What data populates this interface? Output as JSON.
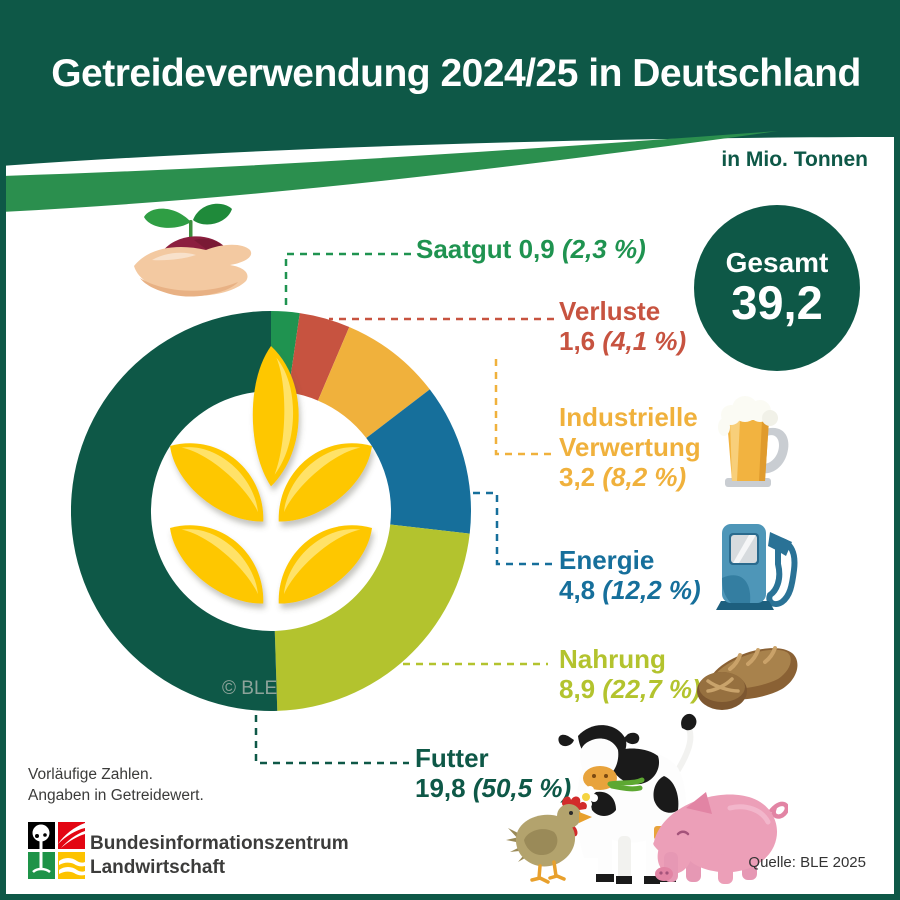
{
  "title": "Getreideverwendung 2024/25 in Deutschland",
  "unit_label": "in Mio. Tonnen",
  "total": {
    "label": "Gesamt",
    "value": "39,2"
  },
  "chart_data": {
    "type": "pie",
    "subtype": "donut",
    "title": "Getreideverwendung 2024/25 in Deutschland",
    "unit": "Mio. Tonnen",
    "total": 39.2,
    "start_angle_deg": 0,
    "direction": "clockwise",
    "inner_radius_ratio": 0.6,
    "categories": [
      {
        "name": "Saatgut",
        "value": 0.9,
        "value_label": "0,9",
        "pct": 2.3,
        "pct_label": "(2,3 %)",
        "color": "#1f9350"
      },
      {
        "name": "Verluste",
        "value": 1.6,
        "value_label": "1,6",
        "pct": 4.1,
        "pct_label": "(4,1 %)",
        "color": "#c75340"
      },
      {
        "name": "Industrielle Verwertung",
        "name_line1": "Industrielle",
        "name_line2": "Verwertung",
        "value": 3.2,
        "value_label": "3,2",
        "pct": 8.2,
        "pct_label": "(8,2 %)",
        "color": "#f0b13c"
      },
      {
        "name": "Energie",
        "value": 4.8,
        "value_label": "4,8",
        "pct": 12.2,
        "pct_label": "(12,2 %)",
        "color": "#166f9b"
      },
      {
        "name": "Nahrung",
        "value": 8.9,
        "value_label": "8,9",
        "pct": 22.7,
        "pct_label": "(22,7 %)",
        "color": "#b3c32e"
      },
      {
        "name": "Futter",
        "value": 19.8,
        "value_label": "19,8",
        "pct": 50.5,
        "pct_label": "(50,5 %)",
        "color": "#0e5847"
      }
    ]
  },
  "watermark": "© BLE",
  "footnote_line1": "Vorläufige Zahlen.",
  "footnote_line2": "Angaben in Getreidewert.",
  "logo": {
    "line1": "Bundesinformationszentrum",
    "line2": "Landwirtschaft"
  },
  "source": "Quelle: BLE 2025",
  "colors": {
    "header_green": "#0e5847",
    "swoosh_green": "#2b8f4e",
    "wheat_yellow": "#fec701",
    "wheat_highlight": "#ffe268",
    "background": "#ffffff",
    "text_dark": "#3b3b3a",
    "watermark_gray": "#8da39a"
  },
  "icon_names": [
    "hand-seedling-icon",
    "beer-mug-icon",
    "fuel-pump-icon",
    "bread-icon",
    "chicken-icon",
    "cow-icon",
    "pig-icon",
    "wheat-ear-icon",
    "ble-logo"
  ]
}
